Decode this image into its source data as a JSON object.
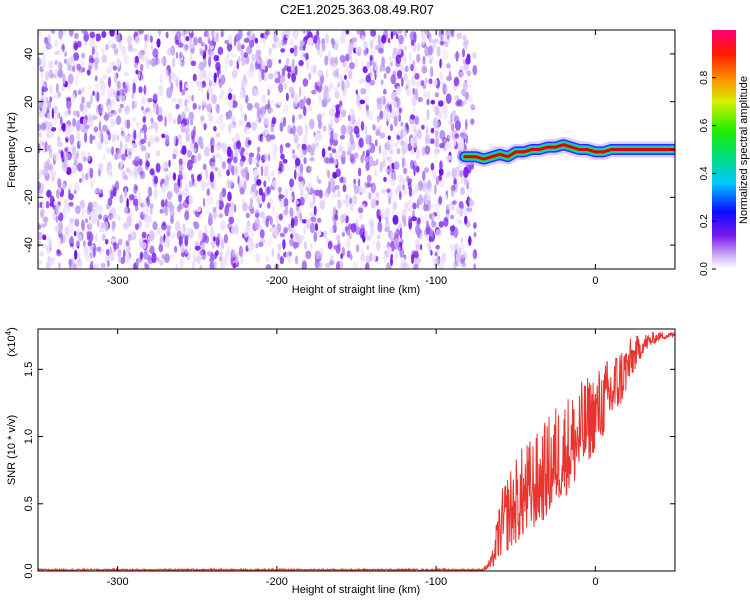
{
  "title": "C2E1.2025.363.08.49.R07",
  "chart_data": [
    {
      "type": "heatmap",
      "xlabel": "Height of straight line (km)",
      "ylabel": "Frequency (Hz)",
      "xlim": [
        -350,
        50
      ],
      "ylim": [
        -50,
        50
      ],
      "xticks": [
        -300,
        -200,
        -100,
        0
      ],
      "yticks": [
        -40,
        -20,
        0,
        20,
        40
      ],
      "noise_region_x": [
        -350,
        -78
      ],
      "signal_track": {
        "x": [
          -82,
          -75,
          -70,
          -65,
          -60,
          -55,
          -50,
          -45,
          -40,
          -35,
          -30,
          -25,
          -20,
          -15,
          -10,
          -5,
          0,
          5,
          10,
          20,
          30,
          40,
          50
        ],
        "freq": [
          -3,
          -3,
          -4,
          -3,
          -2,
          -3,
          -1,
          -1,
          0,
          0,
          1,
          1,
          2,
          1,
          0,
          0,
          -1,
          -1,
          0,
          0,
          0,
          0,
          0
        ]
      },
      "colorbar": {
        "label": "Normalized spectral amplitude",
        "range": [
          0,
          1
        ],
        "ticks": [
          0.0,
          0.2,
          0.4,
          0.6,
          0.8
        ]
      }
    },
    {
      "type": "line",
      "xlabel": "Height of straight line (km)",
      "ylabel": "SNR (10 * v/v)",
      "y_multiplier": "(x10",
      "y_multiplier_exp": "4",
      "y_multiplier_close": ")",
      "xlim": [
        -350,
        50
      ],
      "ylim": [
        0,
        1.8
      ],
      "xticks": [
        -300,
        -200,
        -100,
        0
      ],
      "yticks": [
        0.0,
        0.5,
        1.0,
        1.5
      ],
      "color": "#e8332e",
      "envelope": {
        "x": [
          -350,
          -70,
          -65,
          -60,
          -55,
          -50,
          -45,
          -40,
          -35,
          -30,
          -25,
          -20,
          -15,
          -10,
          -5,
          0,
          5,
          10,
          15,
          20,
          25,
          30,
          40,
          50
        ],
        "max": [
          0.02,
          0.03,
          0.12,
          0.55,
          0.75,
          0.85,
          0.95,
          1.0,
          1.05,
          1.15,
          1.25,
          1.3,
          1.35,
          1.4,
          1.45,
          1.5,
          1.55,
          1.62,
          1.68,
          1.72,
          1.75,
          1.77,
          1.78,
          1.78
        ],
        "min": [
          0.0,
          0.0,
          0.02,
          0.1,
          0.15,
          0.2,
          0.25,
          0.3,
          0.35,
          0.4,
          0.5,
          0.55,
          0.6,
          0.7,
          0.8,
          0.9,
          1.0,
          1.1,
          1.2,
          1.35,
          1.5,
          1.62,
          1.72,
          1.74
        ]
      }
    }
  ]
}
